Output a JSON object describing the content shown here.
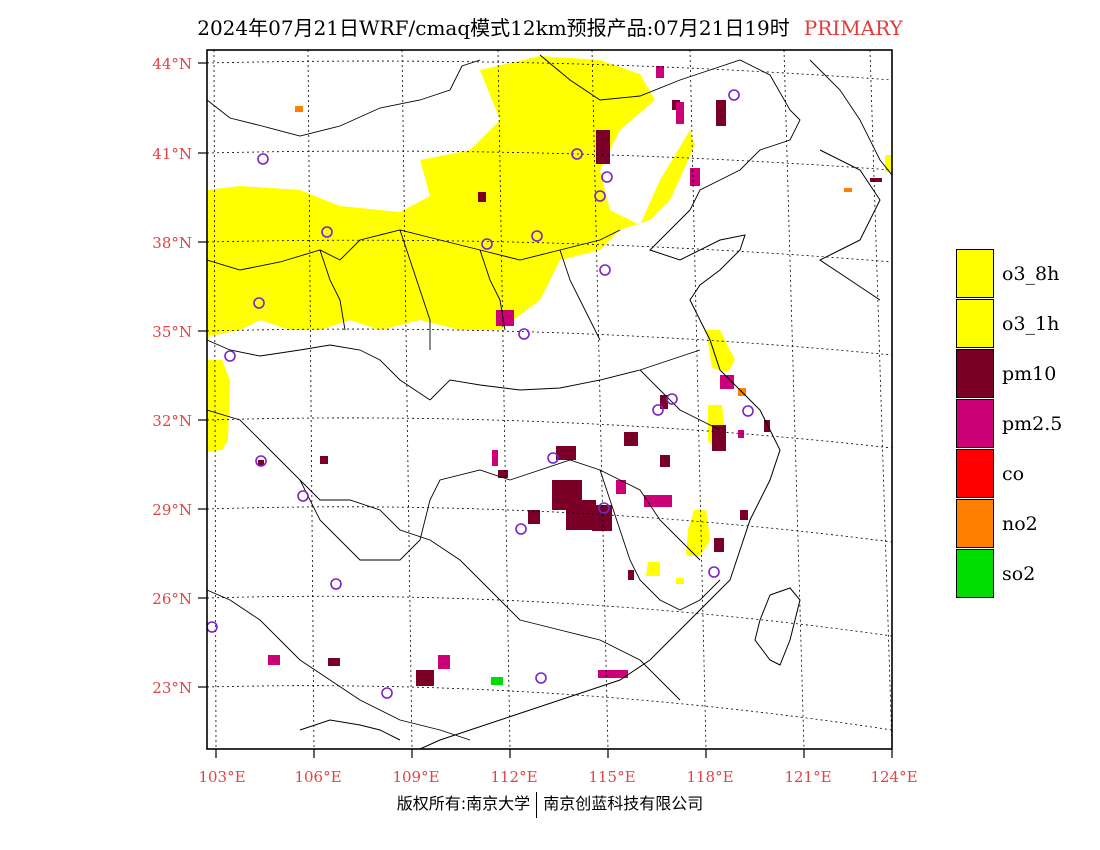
{
  "header": {
    "title": "2024年07月21日WRF/cmaq模式12km预报产品:07月21日19时",
    "tag": "PRIMARY",
    "tag_color": "#e03c3c"
  },
  "map": {
    "lat_labels": [
      "44°N",
      "41°N",
      "38°N",
      "35°N",
      "32°N",
      "29°N",
      "26°N",
      "23°N"
    ],
    "lon_labels": [
      "103°E",
      "106°E",
      "109°E",
      "112°E",
      "115°E",
      "118°E",
      "121°E",
      "124°E"
    ],
    "label_color": "#e04444"
  },
  "legend": [
    {
      "label": "o3_8h",
      "color": "#ffff00"
    },
    {
      "label": "o3_1h",
      "color": "#ffff00"
    },
    {
      "label": "pm10",
      "color": "#7a0028"
    },
    {
      "label": "pm2.5",
      "color": "#cc0077"
    },
    {
      "label": "co",
      "color": "#ff0000"
    },
    {
      "label": "no2",
      "color": "#ff7f00"
    },
    {
      "label": "so2",
      "color": "#00dd00"
    }
  ],
  "footer": {
    "left": "版权所有:南京大学",
    "right": "南京创蓝科技有限公司"
  },
  "icons": {
    "station": "station-circle-icon"
  }
}
